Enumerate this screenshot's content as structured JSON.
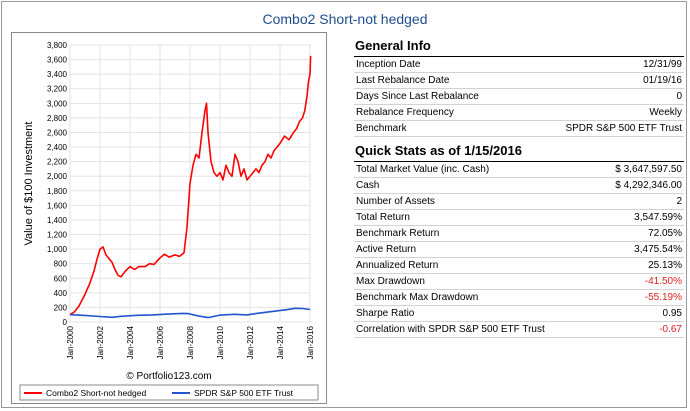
{
  "title": "Combo2 Short-not hedged",
  "general_info": {
    "heading": "General Info",
    "rows": [
      {
        "label": "Inception Date",
        "value": "12/31/99"
      },
      {
        "label": "Last Rebalance Date",
        "value": "01/19/16"
      },
      {
        "label": "Days Since Last Rebalance",
        "value": "0"
      },
      {
        "label": "Rebalance Frequency",
        "value": "Weekly"
      },
      {
        "label": "Benchmark",
        "value": "SPDR S&P 500 ETF Trust"
      }
    ]
  },
  "quick_stats": {
    "heading": "Quick Stats as of 1/15/2016",
    "rows": [
      {
        "label": "Total Market Value (inc. Cash)",
        "value": "$ 3,647,597.50"
      },
      {
        "label": "Cash",
        "value": "$ 4,292,346.00"
      },
      {
        "label": "Number of Assets",
        "value": "2"
      },
      {
        "label": "Total Return",
        "value": "3,547.59%"
      },
      {
        "label": "Benchmark Return",
        "value": "72.05%"
      },
      {
        "label": "Active Return",
        "value": "3,475.54%"
      },
      {
        "label": "Annualized Return",
        "value": "25.13%"
      },
      {
        "label": "Max Drawdown",
        "value": "-41.50%",
        "negative": true
      },
      {
        "label": "Benchmark Max Drawdown",
        "value": "-55.19%",
        "negative": true
      },
      {
        "label": "Sharpe Ratio",
        "value": "0.95"
      },
      {
        "label": "Correlation with SPDR S&P 500 ETF Trust",
        "value": "-0.67",
        "negative": true
      }
    ]
  },
  "watermark": "© Portfolio123.com",
  "chart_data": {
    "type": "line",
    "ylabel": "Value of $100 Investment",
    "xlabel": "",
    "ylim": [
      0,
      3800
    ],
    "xlim": [
      2000,
      2016
    ],
    "y_ticks": [
      "0",
      "200",
      "400",
      "600",
      "800",
      "1,000",
      "1,200",
      "1,400",
      "1,600",
      "1,800",
      "2,000",
      "2,200",
      "2,400",
      "2,600",
      "2,800",
      "3,000",
      "3,200",
      "3,400",
      "3,600",
      "3,800"
    ],
    "x_ticks": [
      "Jan-2000",
      "Jan-2002",
      "Jan-2004",
      "Jan-2006",
      "Jan-2008",
      "Jan-2010",
      "Jan-2012",
      "Jan-2014",
      "Jan-2016"
    ],
    "grid": true,
    "legend_position": "bottom",
    "series": [
      {
        "name": "Combo2 Short-not hedged",
        "color": "#ff0000",
        "x": [
          2000.0,
          2000.3,
          2000.6,
          2001.0,
          2001.3,
          2001.6,
          2001.8,
          2002.0,
          2002.2,
          2002.4,
          2002.6,
          2002.8,
          2003.0,
          2003.2,
          2003.4,
          2003.7,
          2004.0,
          2004.3,
          2004.6,
          2005.0,
          2005.3,
          2005.6,
          2006.0,
          2006.3,
          2006.6,
          2007.0,
          2007.3,
          2007.6,
          2007.8,
          2008.0,
          2008.2,
          2008.4,
          2008.6,
          2008.8,
          2009.0,
          2009.1,
          2009.2,
          2009.4,
          2009.6,
          2009.8,
          2010.0,
          2010.2,
          2010.4,
          2010.6,
          2010.8,
          2011.0,
          2011.2,
          2011.4,
          2011.6,
          2011.8,
          2012.0,
          2012.2,
          2012.4,
          2012.6,
          2012.8,
          2013.0,
          2013.2,
          2013.4,
          2013.6,
          2013.8,
          2014.0,
          2014.3,
          2014.6,
          2014.9,
          2015.1,
          2015.3,
          2015.5,
          2015.65,
          2015.8,
          2015.9,
          2016.0,
          2016.04
        ],
        "values": [
          100,
          140,
          220,
          380,
          520,
          700,
          860,
          1000,
          1030,
          920,
          870,
          820,
          720,
          640,
          620,
          700,
          760,
          720,
          760,
          760,
          800,
          790,
          880,
          930,
          890,
          920,
          900,
          950,
          1300,
          1900,
          2150,
          2300,
          2250,
          2600,
          2900,
          3000,
          2600,
          2200,
          2050,
          2000,
          2050,
          1950,
          2150,
          2050,
          2000,
          2300,
          2200,
          2000,
          2100,
          1950,
          2000,
          2050,
          2100,
          2050,
          2150,
          2200,
          2300,
          2250,
          2350,
          2400,
          2450,
          2550,
          2500,
          2600,
          2650,
          2750,
          2800,
          2900,
          3100,
          3300,
          3400,
          3650
        ]
      },
      {
        "name": "SPDR S&P 500 ETF Trust",
        "color": "#2255cc",
        "x": [
          2000.0,
          2001.0,
          2002.0,
          2002.8,
          2003.5,
          2004.5,
          2005.5,
          2006.5,
          2007.5,
          2007.9,
          2008.5,
          2009.2,
          2010.0,
          2011.0,
          2011.8,
          2012.5,
          2013.5,
          2014.5,
          2015.0,
          2015.5,
          2016.0
        ],
        "values": [
          100,
          90,
          75,
          65,
          80,
          92,
          98,
          108,
          118,
          115,
          85,
          60,
          95,
          105,
          98,
          120,
          145,
          170,
          188,
          185,
          172
        ]
      }
    ]
  }
}
